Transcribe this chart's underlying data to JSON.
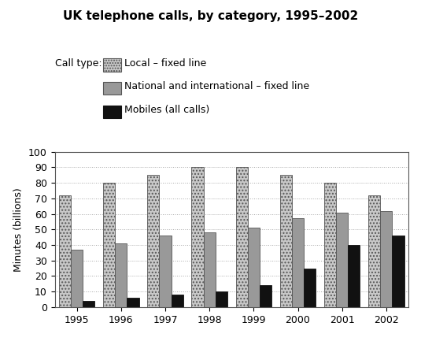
{
  "title": "UK telephone calls, by category, 1995–2002",
  "ylabel": "Minutes (billions)",
  "years": [
    1995,
    1996,
    1997,
    1998,
    1999,
    2000,
    2001,
    2002
  ],
  "local_fixed": [
    72,
    80,
    85,
    90,
    90,
    85,
    80,
    72
  ],
  "national_fixed": [
    37,
    41,
    46,
    48,
    51,
    57,
    61,
    62
  ],
  "mobiles": [
    4,
    6,
    8,
    10,
    14,
    25,
    40,
    46
  ],
  "color_local_face": "#c8c8c8",
  "color_local_edge": "#555555",
  "color_national_face": "#999999",
  "color_national_edge": "#555555",
  "color_mobiles_face": "#111111",
  "color_mobiles_edge": "#111111",
  "ylim": [
    0,
    100
  ],
  "yticks": [
    0,
    10,
    20,
    30,
    40,
    50,
    60,
    70,
    80,
    90,
    100
  ],
  "legend_label_local": "Local – fixed line",
  "legend_label_national": "National and international – fixed line",
  "legend_label_mobiles": "Mobiles (all calls)",
  "legend_prefix": "Call type:",
  "bar_width": 0.27,
  "background_color": "#ffffff",
  "fig_width": 5.35,
  "fig_height": 4.38,
  "dpi": 100
}
